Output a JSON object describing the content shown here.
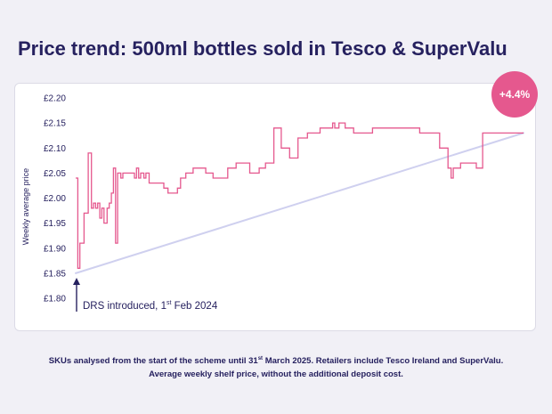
{
  "page": {
    "title": "Price trend: 500ml bottles sold in Tesco & SuperValu",
    "badge": "+4.4%",
    "annotation": {
      "text": "DRS introduced, 1",
      "sup": "st",
      "rest": " Feb 2024"
    },
    "footnote": {
      "line1_a": "SKUs analysed from the start of the scheme until 31",
      "line1_sup": "st",
      "line1_b": " March 2025. Retailers include Tesco Ireland and SuperValu.",
      "line2": "Average weekly shelf price, without the additional deposit cost."
    }
  },
  "colors": {
    "line": "#e5588e",
    "trend": "#cfd0ef",
    "text": "#26215f",
    "badge": "#e5588e"
  },
  "chart_data": {
    "type": "line",
    "title": "Price trend: 500ml bottles sold in Tesco & SuperValu",
    "xlabel": "",
    "ylabel": "Weekly average price",
    "ylim": [
      1.8,
      2.2
    ],
    "yticks": [
      1.8,
      1.85,
      1.9,
      1.95,
      2.0,
      2.05,
      2.1,
      2.15,
      2.2
    ],
    "ytick_labels": [
      "£1.80",
      "£1.85",
      "£1.90",
      "£1.95",
      "£2.00",
      "£2.05",
      "£2.10",
      "£2.15",
      "£2.20"
    ],
    "x": [
      "2024-01-29",
      "2024-01-31",
      "2024-02-02",
      "2024-02-04",
      "2024-02-06",
      "2024-02-08",
      "2024-02-10",
      "2024-02-13",
      "2024-02-15",
      "2024-02-17",
      "2024-02-19",
      "2024-02-21",
      "2024-02-23",
      "2024-02-25",
      "2024-02-28",
      "2024-03-01",
      "2024-03-03",
      "2024-03-05",
      "2024-03-07",
      "2024-03-09",
      "2024-03-12",
      "2024-03-14",
      "2024-03-16",
      "2024-03-18",
      "2024-03-20",
      "2024-03-22",
      "2024-03-25",
      "2024-03-27",
      "2024-03-29",
      "2024-03-31",
      "2024-04-03",
      "2024-04-05",
      "2024-04-08",
      "2024-04-12",
      "2024-04-17",
      "2024-04-22",
      "2024-04-26",
      "2024-04-28",
      "2024-05-01",
      "2024-05-05",
      "2024-05-08",
      "2024-05-13",
      "2024-05-20",
      "2024-05-25",
      "2024-06-01",
      "2024-06-08",
      "2024-06-15",
      "2024-06-22",
      "2024-06-30",
      "2024-07-06",
      "2024-07-13",
      "2024-07-18",
      "2024-07-22",
      "2024-07-28",
      "2024-08-05",
      "2024-08-12",
      "2024-08-20",
      "2024-08-28",
      "2024-09-06",
      "2024-09-12",
      "2024-09-18",
      "2024-09-22",
      "2024-09-25",
      "2024-09-27",
      "2024-09-30",
      "2024-10-02",
      "2024-10-06",
      "2024-10-12",
      "2024-10-20",
      "2024-11-05",
      "2024-11-07",
      "2024-11-10",
      "2024-11-15",
      "2024-12-05",
      "2024-12-22",
      "2025-01-05",
      "2025-01-07",
      "2025-01-10",
      "2025-01-12",
      "2025-01-15",
      "2025-01-18",
      "2025-01-21",
      "2025-01-23",
      "2025-01-26",
      "2025-01-30",
      "2025-02-08",
      "2025-02-14",
      "2025-02-20",
      "2025-02-24",
      "2025-02-26",
      "2025-03-01",
      "2025-03-05",
      "2025-03-08",
      "2025-03-10",
      "2025-03-12",
      "2025-03-14",
      "2025-03-16",
      "2025-03-18",
      "2025-03-20",
      "2025-03-22",
      "2025-03-24",
      "2025-03-31"
    ],
    "series": [
      {
        "values": [
          2.04,
          1.86,
          1.91,
          1.91,
          1.97,
          1.97,
          2.09,
          1.98,
          1.99,
          1.98,
          1.99,
          1.96,
          1.98,
          1.95,
          1.98,
          1.99,
          2.01,
          2.06,
          1.91,
          2.05,
          2.04,
          2.05,
          2.05,
          2.05,
          2.05,
          2.05,
          2.04,
          2.06,
          2.04,
          2.05,
          2.04,
          2.05,
          2.03,
          2.03,
          2.03,
          2.02,
          2.01,
          2.01,
          2.01,
          2.02,
          2.04,
          2.05,
          2.06,
          2.06,
          2.05,
          2.04,
          2.04,
          2.06,
          2.07,
          2.07,
          2.05,
          2.05,
          2.06,
          2.07,
          2.14,
          2.1,
          2.08,
          2.12,
          2.13,
          2.13,
          2.14,
          2.14,
          2.14,
          2.14,
          2.15,
          2.14,
          2.15,
          2.14,
          2.13,
          2.13,
          2.14,
          2.14,
          2.14,
          2.14,
          2.13,
          2.13,
          2.13,
          2.1,
          2.1,
          2.1,
          2.06,
          2.04,
          2.06,
          2.06,
          2.07,
          2.07,
          2.06,
          2.13,
          2.13,
          2.13,
          2.13,
          2.13,
          2.13,
          2.13,
          2.13,
          2.13,
          2.13,
          2.13,
          2.13,
          2.13,
          2.13,
          2.13
        ]
      }
    ],
    "trend": {
      "x": [
        "2024-01-29",
        "2025-03-31"
      ],
      "values": [
        1.85,
        2.13
      ]
    },
    "annotations": [
      "DRS introduced, 1st Feb 2024",
      "+4.4%"
    ],
    "grid": false
  }
}
